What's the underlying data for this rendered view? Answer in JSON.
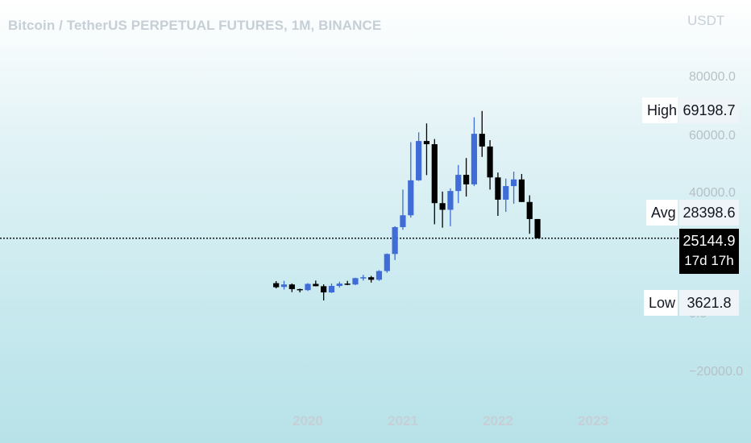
{
  "title": "Bitcoin / TetherUS PERPETUAL FUTURES, 1M, BINANCE",
  "currency": "USDT",
  "colors": {
    "up": "#3f6cd6",
    "down": "#000000",
    "price_line": "#000000"
  },
  "chart_data": {
    "type": "candlestick",
    "timeframe": "1M",
    "candles": [
      {
        "date": "2019-09",
        "open": 9600,
        "high": 10300,
        "low": 7800,
        "close": 8200
      },
      {
        "date": "2019-10",
        "open": 8300,
        "high": 10400,
        "low": 7400,
        "close": 9150
      },
      {
        "date": "2019-11",
        "open": 9150,
        "high": 9500,
        "low": 6500,
        "close": 7550
      },
      {
        "date": "2019-12",
        "open": 7550,
        "high": 7700,
        "low": 6400,
        "close": 7200
      },
      {
        "date": "2020-01",
        "open": 7200,
        "high": 9600,
        "low": 6900,
        "close": 9350
      },
      {
        "date": "2020-02",
        "open": 9350,
        "high": 10500,
        "low": 8500,
        "close": 8550
      },
      {
        "date": "2020-03",
        "open": 8550,
        "high": 9200,
        "low": 3621.8,
        "close": 6400
      },
      {
        "date": "2020-04",
        "open": 6400,
        "high": 9500,
        "low": 6200,
        "close": 8650
      },
      {
        "date": "2020-05",
        "open": 8650,
        "high": 10100,
        "low": 8100,
        "close": 9450
      },
      {
        "date": "2020-06",
        "open": 9450,
        "high": 10400,
        "low": 8900,
        "close": 9150
      },
      {
        "date": "2020-07",
        "open": 9150,
        "high": 11500,
        "low": 8900,
        "close": 11350
      },
      {
        "date": "2020-08",
        "open": 11350,
        "high": 12500,
        "low": 10500,
        "close": 11650
      },
      {
        "date": "2020-09",
        "open": 11650,
        "high": 12100,
        "low": 9800,
        "close": 10780
      },
      {
        "date": "2020-10",
        "open": 10780,
        "high": 14100,
        "low": 10400,
        "close": 13800
      },
      {
        "date": "2020-11",
        "open": 13800,
        "high": 19900,
        "low": 13200,
        "close": 19700
      },
      {
        "date": "2020-12",
        "open": 19700,
        "high": 29300,
        "low": 17600,
        "close": 29000
      },
      {
        "date": "2021-01",
        "open": 29000,
        "high": 42000,
        "low": 28100,
        "close": 33100
      },
      {
        "date": "2021-02",
        "open": 33100,
        "high": 58400,
        "low": 32300,
        "close": 45200
      },
      {
        "date": "2021-03",
        "open": 45200,
        "high": 61800,
        "low": 45000,
        "close": 58800
      },
      {
        "date": "2021-04",
        "open": 58800,
        "high": 64900,
        "low": 47000,
        "close": 57700
      },
      {
        "date": "2021-05",
        "open": 57700,
        "high": 59500,
        "low": 30000,
        "close": 37300
      },
      {
        "date": "2021-06",
        "open": 37300,
        "high": 41300,
        "low": 28800,
        "close": 35000
      },
      {
        "date": "2021-07",
        "open": 35000,
        "high": 42400,
        "low": 29300,
        "close": 41500
      },
      {
        "date": "2021-08",
        "open": 41500,
        "high": 50500,
        "low": 37300,
        "close": 47100
      },
      {
        "date": "2021-09",
        "open": 47100,
        "high": 52900,
        "low": 39600,
        "close": 43800
      },
      {
        "date": "2021-10",
        "open": 43800,
        "high": 67000,
        "low": 43200,
        "close": 61300
      },
      {
        "date": "2021-11",
        "open": 61300,
        "high": 69198.7,
        "low": 53300,
        "close": 56900
      },
      {
        "date": "2021-12",
        "open": 56900,
        "high": 59100,
        "low": 42000,
        "close": 46200
      },
      {
        "date": "2022-01",
        "open": 46200,
        "high": 47900,
        "low": 32900,
        "close": 38500
      },
      {
        "date": "2022-02",
        "open": 38500,
        "high": 45800,
        "low": 34300,
        "close": 43200
      },
      {
        "date": "2022-03",
        "open": 43200,
        "high": 48200,
        "low": 37100,
        "close": 45500
      },
      {
        "date": "2022-04",
        "open": 45500,
        "high": 47400,
        "low": 37700,
        "close": 37700
      },
      {
        "date": "2022-05",
        "open": 37700,
        "high": 40000,
        "low": 26700,
        "close": 31800
      },
      {
        "date": "2022-06",
        "open": 31800,
        "high": 31800,
        "low": 25144.9,
        "close": 25144.9
      }
    ],
    "y_axis": {
      "ticks": [
        "80000.0",
        "60000.0",
        "40000.0",
        "0.0",
        "−20000.0"
      ],
      "ylim": [
        -26000,
        97000
      ]
    },
    "x_axis": {
      "ticks": [
        "2020",
        "2021",
        "2022",
        "2023"
      ],
      "xlim": [
        "2019-01",
        "2023-07"
      ]
    },
    "last_price": {
      "value": "25144.9",
      "countdown": "17d 17h"
    },
    "stats": [
      {
        "label": "High",
        "value": "69198.7"
      },
      {
        "label": "Avg",
        "value": "28398.6"
      },
      {
        "label": "Low",
        "value": "3621.8"
      }
    ]
  }
}
